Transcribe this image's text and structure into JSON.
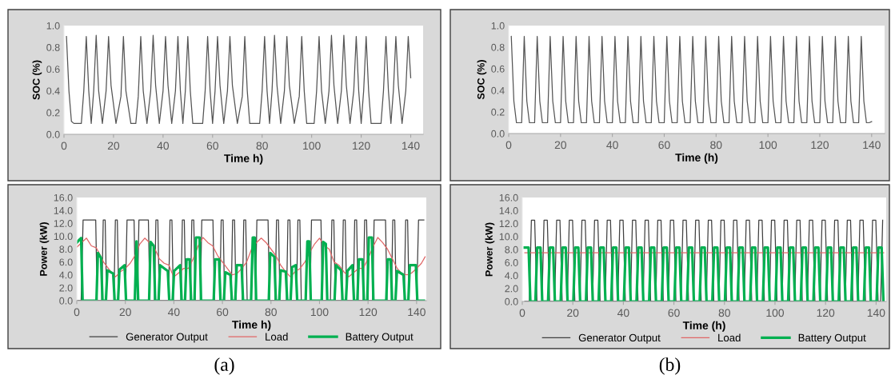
{
  "chart_data": [
    {
      "type": "line",
      "ylabel": "SOC (%)",
      "xlabel": "Time h)",
      "xlim": [
        0,
        145
      ],
      "xticks": [
        0,
        20,
        40,
        60,
        80,
        100,
        120,
        140
      ],
      "ylim": [
        0,
        1
      ],
      "yticks": [
        {
          "value": 0,
          "label": "0.0"
        },
        {
          "value": 0.2,
          "label": "0.2"
        },
        {
          "value": 0.4,
          "label": "0.4"
        },
        {
          "value": 0.6,
          "label": "0.6"
        },
        {
          "value": 0.8,
          "label": "0.8"
        },
        {
          "value": 1,
          "label": "1.0"
        }
      ],
      "grid": false,
      "legend": false,
      "series": [
        {
          "color": "#555555",
          "x": [
            1,
            2,
            3,
            4,
            7,
            8,
            9,
            10,
            11,
            12,
            13,
            14,
            15.5,
            17,
            18,
            19,
            21,
            23,
            24,
            25,
            27,
            29,
            30,
            31,
            32,
            33.5,
            35,
            36,
            37,
            38.5,
            40,
            41,
            42,
            43.5,
            45,
            46,
            47,
            48,
            49,
            50,
            51,
            52,
            56,
            57,
            58,
            59,
            60,
            61,
            62,
            63,
            64.5,
            66,
            67,
            68,
            70,
            72,
            73,
            74,
            75,
            79,
            80,
            81,
            82,
            83,
            84,
            85,
            86,
            87.5,
            89,
            90,
            91,
            93,
            95,
            96,
            97,
            98,
            101,
            102,
            103,
            104,
            105.5,
            107,
            108,
            109,
            110.5,
            112,
            113,
            114,
            115.5,
            117,
            118,
            119,
            120,
            121,
            122,
            123,
            124,
            128,
            129,
            130,
            131,
            132,
            133,
            134,
            135,
            136.5,
            138,
            139,
            140
          ],
          "values": [
            0.9,
            0.4,
            0.12,
            0.1,
            0.1,
            0.4,
            0.9,
            0.4,
            0.1,
            0.4,
            0.91,
            0.4,
            0.1,
            0.4,
            0.9,
            0.45,
            0.1,
            0.35,
            0.9,
            0.4,
            0.1,
            0.1,
            0.35,
            0.9,
            0.4,
            0.1,
            0.4,
            0.91,
            0.45,
            0.1,
            0.4,
            0.9,
            0.45,
            0.1,
            0.4,
            0.9,
            0.4,
            0.1,
            0.4,
            0.9,
            0.4,
            0.1,
            0.1,
            0.4,
            0.9,
            0.4,
            0.1,
            0.4,
            0.9,
            0.45,
            0.1,
            0.4,
            0.9,
            0.45,
            0.1,
            0.35,
            0.9,
            0.4,
            0.1,
            0.1,
            0.4,
            0.9,
            0.4,
            0.1,
            0.4,
            0.91,
            0.45,
            0.1,
            0.4,
            0.9,
            0.45,
            0.1,
            0.35,
            0.9,
            0.4,
            0.1,
            0.1,
            0.4,
            0.9,
            0.4,
            0.1,
            0.4,
            0.91,
            0.45,
            0.1,
            0.4,
            0.91,
            0.45,
            0.1,
            0.4,
            0.9,
            0.4,
            0.1,
            0.4,
            0.9,
            0.4,
            0.1,
            0.1,
            0.4,
            0.9,
            0.4,
            0.1,
            0.4,
            0.9,
            0.45,
            0.1,
            0.4,
            0.9,
            0.52
          ]
        }
      ]
    },
    {
      "type": "line",
      "ylabel": "SOC (%)",
      "xlabel": "Time (h)",
      "xlim": [
        0,
        145
      ],
      "xticks": [
        0,
        20,
        40,
        60,
        80,
        100,
        120,
        140
      ],
      "ylim": [
        0,
        1
      ],
      "yticks": [
        {
          "value": 0,
          "label": "0.0"
        },
        {
          "value": 0.2,
          "label": "0.2"
        },
        {
          "value": 0.4,
          "label": "0.4"
        },
        {
          "value": 0.6,
          "label": "0.6"
        },
        {
          "value": 0.8,
          "label": "0.8"
        },
        {
          "value": 1,
          "label": "1.0"
        }
      ],
      "grid": false,
      "legend": false,
      "series": [
        {
          "color": "#555555",
          "x": [
            1,
            2,
            3,
            5,
            6,
            7,
            8,
            10,
            11,
            12,
            13,
            15,
            16,
            17,
            18,
            20,
            21,
            22,
            23,
            25,
            26,
            27,
            28,
            30,
            31,
            32,
            33,
            35,
            36,
            37,
            38,
            40,
            41,
            42,
            43,
            45,
            46,
            47,
            48,
            50,
            51,
            52,
            53,
            55,
            56,
            57,
            58,
            60,
            61,
            62,
            63,
            65,
            66,
            67,
            68,
            70,
            71,
            72,
            73,
            75,
            76,
            77,
            78,
            80,
            81,
            82,
            83,
            85,
            86,
            87,
            88,
            90,
            91,
            92,
            93,
            95,
            96,
            97,
            98,
            100,
            101,
            102,
            103,
            105,
            106,
            107,
            108,
            110,
            111,
            112,
            113,
            115,
            116,
            117,
            118,
            120,
            121,
            122,
            123,
            125,
            126,
            127,
            128,
            130,
            131,
            132,
            133,
            135,
            136,
            137,
            138,
            139,
            140
          ],
          "values": [
            0.9,
            0.3,
            0.1,
            0.1,
            0.9,
            0.3,
            0.1,
            0.1,
            0.9,
            0.3,
            0.1,
            0.1,
            0.9,
            0.3,
            0.1,
            0.1,
            0.9,
            0.3,
            0.1,
            0.1,
            0.9,
            0.3,
            0.1,
            0.1,
            0.9,
            0.3,
            0.1,
            0.1,
            0.9,
            0.3,
            0.1,
            0.1,
            0.9,
            0.3,
            0.1,
            0.1,
            0.9,
            0.3,
            0.1,
            0.1,
            0.9,
            0.3,
            0.1,
            0.1,
            0.9,
            0.3,
            0.1,
            0.1,
            0.9,
            0.3,
            0.1,
            0.1,
            0.9,
            0.3,
            0.1,
            0.1,
            0.9,
            0.3,
            0.1,
            0.1,
            0.9,
            0.3,
            0.1,
            0.1,
            0.9,
            0.3,
            0.1,
            0.1,
            0.9,
            0.3,
            0.1,
            0.1,
            0.9,
            0.3,
            0.1,
            0.1,
            0.9,
            0.3,
            0.1,
            0.1,
            0.9,
            0.3,
            0.1,
            0.1,
            0.9,
            0.3,
            0.1,
            0.1,
            0.9,
            0.3,
            0.1,
            0.1,
            0.9,
            0.3,
            0.1,
            0.1,
            0.9,
            0.3,
            0.1,
            0.1,
            0.9,
            0.3,
            0.1,
            0.1,
            0.9,
            0.3,
            0.1,
            0.1,
            0.9,
            0.3,
            0.1,
            0.1,
            0.11
          ]
        }
      ]
    },
    {
      "type": "line",
      "ylabel": "Power (kW)",
      "xlabel": "Time h)",
      "xlim": [
        0,
        144
      ],
      "xticks": [
        0,
        20,
        40,
        60,
        80,
        100,
        120,
        140
      ],
      "ylim": [
        0,
        16
      ],
      "yticks": [
        {
          "value": 0,
          "label": "0.0"
        },
        {
          "value": 2,
          "label": "2.0"
        },
        {
          "value": 4,
          "label": "4.0"
        },
        {
          "value": 6,
          "label": "6.0"
        },
        {
          "value": 8,
          "label": "8.0"
        },
        {
          "value": 10,
          "label": "10.0"
        },
        {
          "value": 12,
          "label": "12.0"
        },
        {
          "value": 14,
          "label": "14.0"
        },
        {
          "value": 16,
          "label": "16.0"
        }
      ],
      "grid": false,
      "legend": "bottom",
      "annotations": [
        "(a)"
      ],
      "series": [
        {
          "name": "Generator Output",
          "color": "#404040",
          "x": [
            0,
            1.8,
            2.6,
            7.8,
            8.4,
            10.3,
            10.9,
            11.7,
            12.3,
            15.3,
            15.9,
            16.7,
            17.3,
            20.0,
            20.7,
            23.6,
            24.2,
            25.0,
            25.6,
            29.5,
            30.1,
            32.0,
            32.6,
            33.4,
            34.0,
            37.8,
            38.4,
            39.2,
            39.8,
            42.9,
            43.5,
            44.3,
            44.9,
            46.8,
            47.4,
            48.2,
            48.8,
            50.9,
            51.5,
            56.1,
            56.7,
            58.9,
            59.5,
            60.3,
            60.9,
            63.6,
            64.2,
            65.0,
            65.6,
            68.2,
            68.8,
            69.6,
            70.2,
            73.6,
            74.2,
            78.8,
            79.4,
            81.7,
            82.3,
            83.1,
            83.7,
            86.4,
            87.0,
            87.8,
            88.4,
            90.5,
            91.1,
            91.9,
            92.5,
            96.1,
            96.7,
            100.6,
            101.2,
            104.5,
            105.1,
            105.9,
            106.5,
            109.2,
            109.8,
            110.6,
            111.2,
            113.9,
            114.5,
            115.3,
            115.9,
            118.0,
            118.6,
            119.4,
            120.0,
            121.9,
            122.5,
            127.2,
            127.8,
            129.6,
            130.2,
            131.0,
            131.6,
            134.9,
            135.5,
            136.3,
            136.9,
            140.0,
            140.8,
            143
          ],
          "values": [
            0,
            0,
            12.5,
            12.5,
            0,
            0,
            12.5,
            12.5,
            0,
            0,
            12.5,
            12.5,
            0,
            0,
            12.5,
            12.5,
            0,
            0,
            12.5,
            12.5,
            0,
            0,
            12.5,
            12.5,
            0,
            0,
            12.5,
            12.5,
            0,
            0,
            12.5,
            12.5,
            0,
            0,
            12.5,
            12.5,
            0,
            0,
            12.5,
            12.5,
            0,
            0,
            12.5,
            12.5,
            0,
            0,
            12.5,
            12.5,
            0,
            0,
            12.5,
            12.5,
            0,
            0,
            12.5,
            12.5,
            0,
            0,
            12.5,
            12.5,
            0,
            0,
            12.5,
            12.5,
            0,
            0,
            12.5,
            12.5,
            0,
            0,
            12.5,
            12.5,
            0,
            0,
            12.5,
            12.5,
            0,
            0,
            12.5,
            12.5,
            0,
            0,
            12.5,
            12.5,
            0,
            0,
            12.5,
            12.5,
            0,
            0,
            12.5,
            12.5,
            0,
            0,
            12.5,
            12.5,
            0,
            0,
            12.5,
            12.5,
            0,
            0,
            12.5,
            12.5
          ]
        },
        {
          "name": "Load",
          "color": "#e06666",
          "x": [
            0,
            4,
            6,
            8,
            9.5,
            11,
            13,
            14,
            16,
            18,
            20,
            22,
            24,
            26,
            28,
            30,
            32,
            34,
            36,
            38,
            39,
            40,
            42,
            44,
            46,
            48,
            50,
            52,
            54,
            56,
            58,
            60,
            62,
            64,
            66,
            68,
            70,
            72,
            74,
            76,
            78,
            80,
            82,
            84,
            86,
            88,
            90,
            92,
            94,
            96,
            98,
            100,
            102,
            104,
            106,
            108,
            110,
            112,
            114,
            116,
            118,
            120,
            122,
            124,
            126,
            128,
            130,
            132,
            134,
            136,
            138,
            140,
            142,
            143.5
          ],
          "values": [
            8.3,
            9.7,
            8.5,
            8.2,
            7.2,
            6.0,
            5.0,
            4.5,
            3.7,
            4.5,
            5.0,
            5.8,
            7.0,
            8.8,
            9.7,
            9.0,
            8.2,
            6.5,
            5.8,
            5.5,
            4.5,
            3.7,
            4.3,
            5.0,
            5.0,
            6.5,
            8.5,
            9.8,
            9.0,
            8.5,
            7.0,
            6.0,
            5.0,
            4.0,
            4.2,
            5.0,
            6.0,
            8.0,
            9.0,
            9.7,
            9.0,
            8.0,
            7.0,
            5.5,
            4.5,
            3.7,
            4.5,
            5.0,
            6.0,
            7.5,
            8.8,
            9.7,
            8.5,
            8.0,
            6.0,
            5.5,
            4.5,
            3.7,
            4.3,
            5.0,
            5.0,
            6.5,
            8.3,
            9.8,
            9.0,
            8.0,
            6.5,
            5.0,
            4.2,
            4.0,
            4.3,
            5.0,
            5.8,
            6.8
          ]
        },
        {
          "name": "Battery Output",
          "color": "#00b050",
          "x": [
            0,
            1.2,
            1.8,
            2.4,
            8.1,
            8.7,
            10.0,
            10.6,
            12.0,
            12.6,
            15.0,
            15.6,
            17.0,
            17.6,
            19.7,
            20.3,
            23.9,
            24.6,
            25.3,
            29.8,
            30.4,
            31.7,
            32.3,
            33.7,
            34.3,
            37.5,
            38.1,
            39.5,
            40.1,
            42.6,
            43.2,
            44.6,
            45.2,
            46.5,
            47.1,
            48.5,
            49.1,
            50.6,
            51.2,
            56.4,
            57.0,
            58.6,
            59.2,
            60.6,
            61.2,
            63.3,
            63.9,
            65.3,
            65.9,
            67.9,
            68.5,
            71.8,
            72.5,
            73.3,
            73.9,
            79.1,
            79.7,
            81.4,
            82.0,
            83.4,
            84.0,
            86.1,
            86.7,
            88.1,
            88.7,
            90.2,
            90.8,
            94.3,
            95.0,
            95.8,
            96.4,
            100.9,
            101.5,
            102.6,
            103.2,
            106.2,
            106.8,
            108.9,
            109.5,
            110.9,
            111.5,
            113.6,
            114.2,
            115.6,
            116.2,
            117.7,
            118.3,
            119.7,
            120.3,
            121.6,
            122.2,
            127.5,
            128.1,
            129.3,
            129.9,
            131.3,
            131.9,
            134.6,
            135.2,
            136.6,
            137.2,
            139.7,
            140.3,
            143
          ],
          "values": [
            9.0,
            9.5,
            9.7,
            0,
            0,
            7.4,
            6.6,
            0,
            0,
            4.7,
            4.2,
            0,
            0,
            4.8,
            5.5,
            0,
            0,
            9.2,
            0,
            0,
            9.1,
            8.5,
            0,
            0,
            5.5,
            4.6,
            0,
            0,
            4.6,
            5.5,
            0,
            0,
            6.4,
            6.4,
            0,
            0,
            9.8,
            9.8,
            0,
            0,
            6.4,
            6.4,
            0,
            0,
            4.4,
            4.0,
            0,
            0,
            5.5,
            5.5,
            0,
            0,
            9.8,
            9.8,
            0,
            0,
            7.4,
            6.8,
            0,
            0,
            4.7,
            4.5,
            0,
            0,
            5.2,
            5.5,
            0,
            0,
            9.2,
            9.2,
            0,
            0,
            9.1,
            8.8,
            0,
            0,
            5.5,
            4.7,
            0,
            0,
            4.6,
            5.5,
            0,
            0,
            6.4,
            6.4,
            0,
            0,
            9.8,
            9.8,
            0,
            0,
            6.4,
            6.4,
            0,
            0,
            4.6,
            4.0,
            0,
            0,
            5.5,
            5.5,
            0,
            0
          ]
        }
      ]
    },
    {
      "type": "line",
      "ylabel": "Power (kW)",
      "xlabel": "Time (h)",
      "xlim": [
        0,
        144
      ],
      "xticks": [
        0,
        20,
        40,
        60,
        80,
        100,
        120,
        140
      ],
      "ylim": [
        0,
        16
      ],
      "yticks": [
        {
          "value": 0,
          "label": "0.0"
        },
        {
          "value": 2,
          "label": "2.0"
        },
        {
          "value": 4,
          "label": "4.0"
        },
        {
          "value": 6,
          "label": "6.0"
        },
        {
          "value": 8,
          "label": "8.0"
        },
        {
          "value": 10,
          "label": "10.0"
        },
        {
          "value": 12,
          "label": "12.0"
        },
        {
          "value": 14,
          "label": "14.0"
        },
        {
          "value": 16,
          "label": "16.0"
        }
      ],
      "grid": false,
      "legend": "bottom",
      "annotations": [
        "(b)"
      ],
      "series": [
        {
          "name": "Generator Output",
          "color": "#404040",
          "x": [
            1,
            2.8,
            3.6,
            4.9,
            5.8,
            7.8,
            8.6,
            9.9,
            10.8,
            12.8,
            13.6,
            14.9,
            15.8,
            17.8,
            18.6,
            19.9,
            20.8,
            22.8,
            23.6,
            24.9,
            25.8,
            27.8,
            28.6,
            29.9,
            30.8,
            32.8,
            33.6,
            34.9,
            35.8,
            37.8,
            38.6,
            39.9,
            40.8,
            42.8,
            43.6,
            44.9,
            45.8,
            47.8,
            48.6,
            49.9,
            50.8,
            52.8,
            53.6,
            54.9,
            55.8,
            57.8,
            58.6,
            59.9,
            60.8,
            62.8,
            63.6,
            64.9,
            65.8,
            67.8,
            68.6,
            69.9,
            70.8,
            72.8,
            73.6,
            74.9,
            75.8,
            77.8,
            78.6,
            79.9,
            80.8,
            82.8,
            83.6,
            84.9,
            85.8,
            87.8,
            88.6,
            89.9,
            90.8,
            92.8,
            93.6,
            94.9,
            95.8,
            97.8,
            98.6,
            99.9,
            100.8,
            102.8,
            103.6,
            104.9,
            105.8,
            107.8,
            108.6,
            109.9,
            110.8,
            112.8,
            113.6,
            114.9,
            115.8,
            117.8,
            118.6,
            119.9,
            120.8,
            122.8,
            123.6,
            124.9,
            125.8,
            127.8,
            128.6,
            129.9,
            130.8,
            132.8,
            133.6,
            134.9,
            135.8,
            137.8,
            138.6,
            139.9,
            140.8,
            141.8,
            142.6
          ],
          "values": [
            0,
            0,
            12.5,
            12.5,
            0,
            0,
            12.5,
            12.5,
            0,
            0,
            12.5,
            12.5,
            0,
            0,
            12.5,
            12.5,
            0,
            0,
            12.5,
            12.5,
            0,
            0,
            12.5,
            12.5,
            0,
            0,
            12.5,
            12.5,
            0,
            0,
            12.5,
            12.5,
            0,
            0,
            12.5,
            12.5,
            0,
            0,
            12.5,
            12.5,
            0,
            0,
            12.5,
            12.5,
            0,
            0,
            12.5,
            12.5,
            0,
            0,
            12.5,
            12.5,
            0,
            0,
            12.5,
            12.5,
            0,
            0,
            12.5,
            12.5,
            0,
            0,
            12.5,
            12.5,
            0,
            0,
            12.5,
            12.5,
            0,
            0,
            12.5,
            12.5,
            0,
            0,
            12.5,
            12.5,
            0,
            0,
            12.5,
            12.5,
            0,
            0,
            12.5,
            12.5,
            0,
            0,
            12.5,
            12.5,
            0,
            0,
            12.5,
            12.5,
            0,
            0,
            12.5,
            12.5,
            0,
            0,
            12.5,
            12.5,
            0,
            0,
            12.5,
            12.5,
            0,
            0,
            12.5,
            12.5,
            0,
            0,
            12.5,
            12.5,
            0,
            0,
            12.5
          ]
        },
        {
          "name": "Load",
          "color": "#e06666",
          "x": [
            1,
            143
          ],
          "values": [
            7.5,
            7.5
          ]
        },
        {
          "name": "Battery Output",
          "color": "#00b050",
          "x": [
            1,
            2.5,
            3.2,
            5.2,
            5.9,
            7.2,
            7.9,
            10.2,
            10.9,
            12.2,
            12.9,
            15.2,
            15.9,
            17.2,
            17.9,
            20.2,
            20.9,
            22.2,
            22.9,
            25.2,
            25.9,
            27.2,
            27.9,
            30.2,
            30.9,
            32.2,
            32.9,
            35.2,
            35.9,
            37.2,
            37.9,
            40.2,
            40.9,
            42.2,
            42.9,
            45.2,
            45.9,
            47.2,
            47.9,
            50.2,
            50.9,
            52.2,
            52.9,
            55.2,
            55.9,
            57.2,
            57.9,
            60.2,
            60.9,
            62.2,
            62.9,
            65.2,
            65.9,
            67.2,
            67.9,
            70.2,
            70.9,
            72.2,
            72.9,
            75.2,
            75.9,
            77.2,
            77.9,
            80.2,
            80.9,
            82.2,
            82.9,
            85.2,
            85.9,
            87.2,
            87.9,
            90.2,
            90.9,
            92.2,
            92.9,
            95.2,
            95.9,
            97.2,
            97.9,
            100.2,
            100.9,
            102.2,
            102.9,
            105.2,
            105.9,
            107.2,
            107.9,
            110.2,
            110.9,
            112.2,
            112.9,
            115.2,
            115.9,
            117.2,
            117.9,
            120.2,
            120.9,
            122.2,
            122.9,
            125.2,
            125.9,
            127.2,
            127.9,
            130.2,
            130.9,
            132.2,
            132.9,
            135.2,
            135.9,
            137.2,
            137.9,
            140.2,
            140.9,
            142.2,
            142.9
          ],
          "values": [
            8.3,
            8.3,
            0,
            0,
            8.3,
            8.3,
            0,
            0,
            8.3,
            8.3,
            0,
            0,
            8.3,
            8.3,
            0,
            0,
            8.3,
            8.3,
            0,
            0,
            8.3,
            8.3,
            0,
            0,
            8.3,
            8.3,
            0,
            0,
            8.3,
            8.3,
            0,
            0,
            8.3,
            8.3,
            0,
            0,
            8.3,
            8.3,
            0,
            0,
            8.3,
            8.3,
            0,
            0,
            8.3,
            8.3,
            0,
            0,
            8.3,
            8.3,
            0,
            0,
            8.3,
            8.3,
            0,
            0,
            8.3,
            8.3,
            0,
            0,
            8.3,
            8.3,
            0,
            0,
            8.3,
            8.3,
            0,
            0,
            8.3,
            8.3,
            0,
            0,
            8.3,
            8.3,
            0,
            0,
            8.3,
            8.3,
            0,
            0,
            8.3,
            8.3,
            0,
            0,
            8.3,
            8.3,
            0,
            0,
            8.3,
            8.3,
            0,
            0,
            8.3,
            8.3,
            0,
            0,
            8.3,
            8.3,
            0,
            0,
            8.3,
            8.3,
            0,
            0,
            8.3,
            8.3,
            0,
            0,
            8.3,
            8.3,
            0,
            0,
            8.3,
            8.3,
            0
          ]
        }
      ]
    }
  ]
}
